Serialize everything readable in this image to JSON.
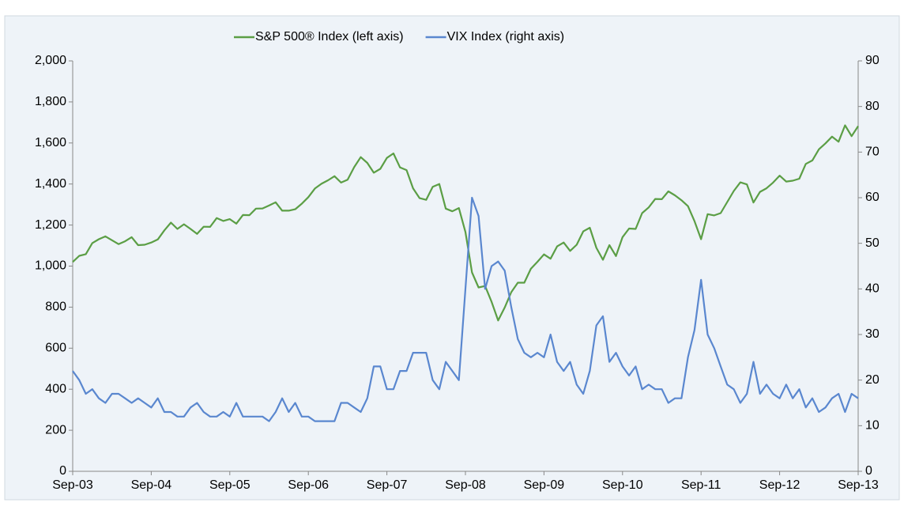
{
  "chart_data": {
    "type": "line",
    "x": [
      "2003-09",
      "2003-10",
      "2003-11",
      "2003-12",
      "2004-01",
      "2004-02",
      "2004-03",
      "2004-04",
      "2004-05",
      "2004-06",
      "2004-07",
      "2004-08",
      "2004-09",
      "2004-10",
      "2004-11",
      "2004-12",
      "2005-01",
      "2005-02",
      "2005-03",
      "2005-04",
      "2005-05",
      "2005-06",
      "2005-07",
      "2005-08",
      "2005-09",
      "2005-10",
      "2005-11",
      "2005-12",
      "2006-01",
      "2006-02",
      "2006-03",
      "2006-04",
      "2006-05",
      "2006-06",
      "2006-07",
      "2006-08",
      "2006-09",
      "2006-10",
      "2006-11",
      "2006-12",
      "2007-01",
      "2007-02",
      "2007-03",
      "2007-04",
      "2007-05",
      "2007-06",
      "2007-07",
      "2007-08",
      "2007-09",
      "2007-10",
      "2007-11",
      "2007-12",
      "2008-01",
      "2008-02",
      "2008-03",
      "2008-04",
      "2008-05",
      "2008-06",
      "2008-07",
      "2008-08",
      "2008-09",
      "2008-10",
      "2008-11",
      "2008-12",
      "2009-01",
      "2009-02",
      "2009-03",
      "2009-04",
      "2009-05",
      "2009-06",
      "2009-07",
      "2009-08",
      "2009-09",
      "2009-10",
      "2009-11",
      "2009-12",
      "2010-01",
      "2010-02",
      "2010-03",
      "2010-04",
      "2010-05",
      "2010-06",
      "2010-07",
      "2010-08",
      "2010-09",
      "2010-10",
      "2010-11",
      "2010-12",
      "2011-01",
      "2011-02",
      "2011-03",
      "2011-04",
      "2011-05",
      "2011-06",
      "2011-07",
      "2011-08",
      "2011-09",
      "2011-10",
      "2011-11",
      "2011-12",
      "2012-01",
      "2012-02",
      "2012-03",
      "2012-04",
      "2012-05",
      "2012-06",
      "2012-07",
      "2012-08",
      "2012-09",
      "2012-10",
      "2012-11",
      "2012-12",
      "2013-01",
      "2013-02",
      "2013-03",
      "2013-04",
      "2013-05",
      "2013-06",
      "2013-07",
      "2013-08",
      "2013-09"
    ],
    "series": [
      {
        "name": "S&P 500® Index (left axis)",
        "color": "#5b9e45",
        "values": [
          1020,
          1050,
          1058,
          1112,
          1131,
          1145,
          1126,
          1107,
          1121,
          1141,
          1102,
          1104,
          1115,
          1130,
          1174,
          1212,
          1181,
          1204,
          1181,
          1157,
          1192,
          1191,
          1234,
          1220,
          1229,
          1207,
          1249,
          1248,
          1280,
          1281,
          1295,
          1311,
          1270,
          1270,
          1277,
          1304,
          1336,
          1378,
          1401,
          1418,
          1438,
          1407,
          1421,
          1482,
          1531,
          1503,
          1455,
          1474,
          1527,
          1549,
          1481,
          1468,
          1379,
          1331,
          1323,
          1386,
          1400,
          1280,
          1267,
          1283,
          1166,
          969,
          896,
          903,
          826,
          735,
          798,
          873,
          919,
          919,
          987,
          1021,
          1057,
          1036,
          1096,
          1115,
          1074,
          1104,
          1169,
          1187,
          1089,
          1031,
          1102,
          1049,
          1141,
          1183,
          1181,
          1258,
          1286,
          1327,
          1326,
          1364,
          1345,
          1321,
          1292,
          1219,
          1131,
          1253,
          1247,
          1258,
          1312,
          1366,
          1408,
          1398,
          1310,
          1362,
          1379,
          1407,
          1441,
          1412,
          1416,
          1426,
          1498,
          1515,
          1569,
          1598,
          1631,
          1606,
          1686,
          1633,
          1682
        ]
      },
      {
        "name": "VIX Index (right axis)",
        "color": "#5a87cf",
        "axis": "y2",
        "values": [
          22,
          20,
          17,
          18,
          16,
          15,
          17,
          17,
          16,
          15,
          16,
          15,
          14,
          16,
          13,
          13,
          12,
          12,
          14,
          15,
          13,
          12,
          12,
          13,
          12,
          15,
          12,
          12,
          12,
          12,
          11,
          13,
          16,
          13,
          15,
          12,
          12,
          11,
          11,
          11,
          11,
          15,
          15,
          14,
          13,
          16,
          23,
          23,
          18,
          18,
          22,
          22,
          26,
          26,
          26,
          20,
          18,
          24,
          22,
          20,
          40,
          60,
          56,
          40,
          45,
          46,
          44,
          36,
          29,
          26,
          25,
          26,
          25,
          30,
          24,
          22,
          24,
          19,
          17,
          22,
          32,
          34,
          24,
          26,
          23,
          21,
          23,
          18,
          19,
          18,
          18,
          15,
          16,
          16,
          25,
          31,
          42,
          30,
          27,
          23,
          19,
          18,
          15,
          17,
          24,
          17,
          19,
          17,
          16,
          19,
          16,
          18,
          14,
          16,
          13,
          14,
          16,
          17,
          13,
          17,
          16
        ]
      }
    ],
    "xticks": [
      {
        "value": "2003-09",
        "label": "Sep-03"
      },
      {
        "value": "2004-09",
        "label": "Sep-04"
      },
      {
        "value": "2005-09",
        "label": "Sep-05"
      },
      {
        "value": "2006-09",
        "label": "Sep-06"
      },
      {
        "value": "2007-09",
        "label": "Sep-07"
      },
      {
        "value": "2008-09",
        "label": "Sep-08"
      },
      {
        "value": "2009-09",
        "label": "Sep-09"
      },
      {
        "value": "2010-09",
        "label": "Sep-10"
      },
      {
        "value": "2011-09",
        "label": "Sep-11"
      },
      {
        "value": "2012-09",
        "label": "Sep-12"
      },
      {
        "value": "2013-09",
        "label": "Sep-13"
      }
    ],
    "ylim": [
      0,
      2000
    ],
    "yticks": [
      0,
      200,
      400,
      600,
      800,
      {
        "value": 1000,
        "label": "1,000"
      },
      {
        "value": 1200,
        "label": "1,200"
      },
      {
        "value": 1400,
        "label": "1,400"
      },
      {
        "value": 1600,
        "label": "1,600"
      },
      {
        "value": 1800,
        "label": "1,800"
      },
      {
        "value": 2000,
        "label": "2,000"
      }
    ],
    "y2lim": [
      0,
      90
    ],
    "y2ticks": [
      0,
      10,
      20,
      30,
      40,
      50,
      60,
      70,
      80,
      90
    ],
    "legend": "top"
  }
}
